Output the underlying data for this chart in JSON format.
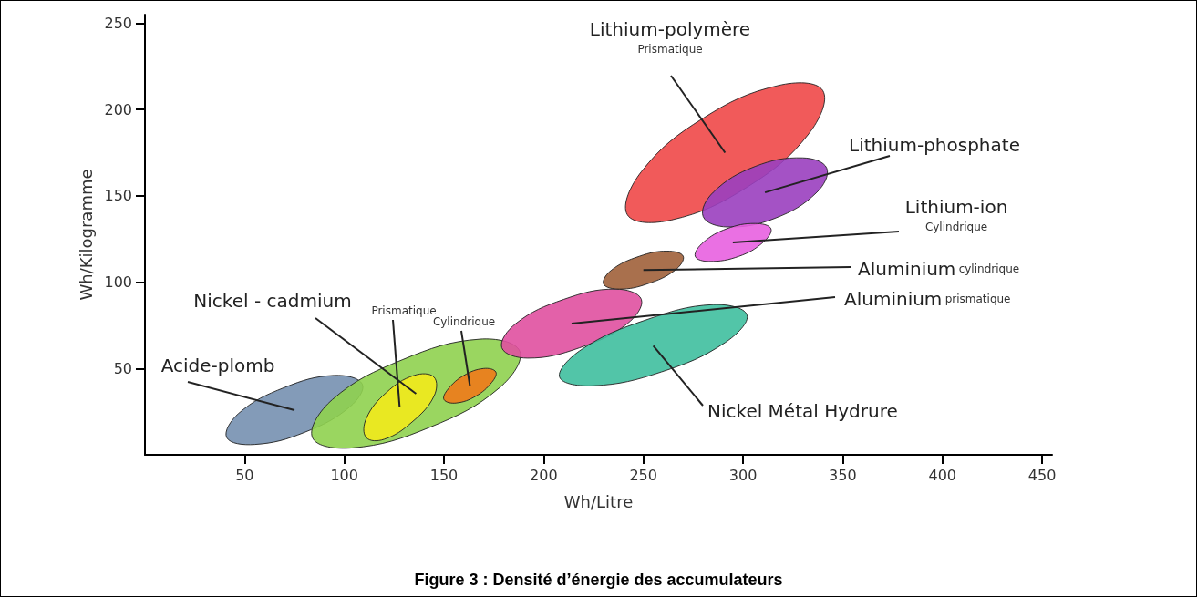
{
  "chart_data": {
    "type": "area",
    "title": "Figure 3 : Densité d’énergie des accumulateurs",
    "xlabel": "Wh/Litre",
    "ylabel": "Wh/Kilogramme",
    "xlim": [
      0,
      455
    ],
    "xticks": [
      50,
      100,
      150,
      200,
      250,
      300,
      350,
      400,
      450
    ],
    "ylim": [
      0,
      255
    ],
    "yticks": [
      50,
      100,
      150,
      200,
      250
    ],
    "grid": false,
    "legend": false,
    "series": [
      {
        "name": "Acide-plomb",
        "color": "#7590b0",
        "x": [
          109,
          103,
          80,
          55,
          41,
          47,
          70,
          95
        ],
        "values": [
          41,
          28,
          13,
          6,
          10,
          24,
          39,
          46
        ]
      },
      {
        "name": "Nickel - cadmium",
        "color": "#8fd14f",
        "x": [
          188,
          178,
          143,
          104,
          84,
          94,
          129,
          168
        ],
        "values": [
          60,
          39,
          16,
          4,
          10,
          32,
          55,
          67
        ]
      },
      {
        "name": "Prismatique",
        "color": "#f2ea1c",
        "x": [
          145,
          145,
          134,
          120,
          111,
          111,
          121,
          135
        ],
        "values": [
          45,
          34,
          19,
          9,
          10,
          21,
          36,
          46
        ]
      },
      {
        "name": "Cylindrique",
        "color": "#f07a1a",
        "x": [
          176,
          174,
          166,
          156,
          150,
          152,
          160,
          170
        ],
        "values": [
          48,
          42,
          34,
          30,
          32,
          38,
          46,
          50
        ]
      },
      {
        "name": "Aluminium\nprismatique",
        "color": "#e050a0",
        "x": [
          249,
          242,
          218,
          192,
          179,
          186,
          210,
          236
        ],
        "values": [
          90,
          76,
          62,
          56,
          62,
          76,
          90,
          96
        ]
      },
      {
        "name": "Aluminium\ncylindrique",
        "color": "#a0603a",
        "x": [
          270,
          266,
          252,
          238,
          230,
          234,
          248,
          262
        ],
        "values": [
          115,
          107,
          99,
          96,
          99,
          107,
          115,
          118
        ]
      },
      {
        "name": "Nickel Métal Hydrure",
        "color": "#3fbf9f",
        "x": [
          302,
          291,
          259,
          225,
          208,
          219,
          251,
          285
        ],
        "values": [
          81,
          65,
          48,
          40,
          45,
          61,
          78,
          87
        ]
      },
      {
        "name": "Lithium-polymère\nPrismatique",
        "color": "#f04848",
        "x": [
          340,
          333,
          302,
          264,
          242,
          249,
          280,
          318
        ],
        "values": [
          211,
          186,
          155,
          136,
          139,
          164,
          195,
          214
        ]
      },
      {
        "name": "Lithium-phosphate",
        "color": "#9a3fbf",
        "x": [
          342,
          337,
          316,
          292,
          280,
          285,
          306,
          330
        ],
        "values": [
          166,
          152,
          137,
          132,
          138,
          152,
          167,
          172
        ]
      },
      {
        "name": "Lithium-ion\nCylindrique",
        "color": "#e860e0",
        "x": [
          314,
          310,
          298,
          283,
          276,
          280,
          292,
          306
        ],
        "values": [
          131,
          123,
          115,
          112,
          115,
          123,
          131,
          134
        ]
      }
    ]
  }
}
